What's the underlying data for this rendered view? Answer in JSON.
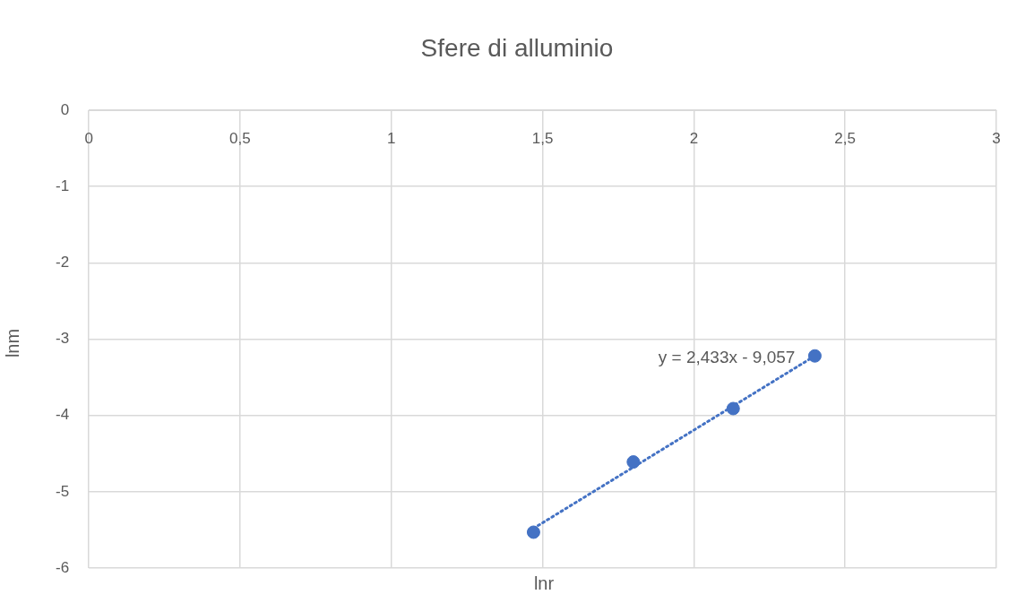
{
  "chart_data": {
    "type": "scatter",
    "title": "Sfere di alluminio",
    "xlabel": "lnr",
    "ylabel": "lnm",
    "series": [
      {
        "color": "#4472c4",
        "x": [
          1.47,
          1.8,
          2.13,
          2.4
        ],
        "values": [
          -5.53,
          -4.61,
          -3.91,
          -3.22
        ],
        "marker": "circle"
      },
      {
        "type": "line",
        "color": "#4472c4",
        "x": [
          1.47,
          2.4
        ],
        "values": [
          -5.48,
          -3.22
        ],
        "line_style": "dotted",
        "marker": "none"
      }
    ],
    "xlim": [
      0,
      3
    ],
    "xticks": [
      0,
      {
        "value": 0.5,
        "label": "0,5"
      },
      1,
      {
        "value": 1.5,
        "label": "1,5"
      },
      2,
      {
        "value": 2.5,
        "label": "2,5"
      },
      3
    ],
    "ylim": [
      -6,
      0
    ],
    "yticks": [
      -6,
      -5,
      -4,
      -3,
      -2,
      -1,
      0
    ],
    "grid": true,
    "legend": false,
    "annotations": [
      "y = 2,433x - 9,057"
    ]
  }
}
